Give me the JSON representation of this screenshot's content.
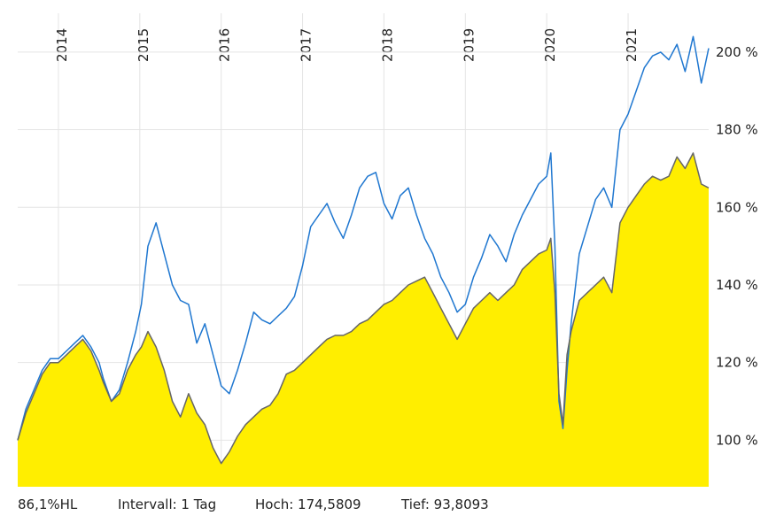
{
  "chart_data": {
    "type": "area",
    "x_ticks": [
      "2014",
      "2015",
      "2016",
      "2017",
      "2018",
      "2019",
      "2020",
      "2021"
    ],
    "y_ticks": [
      {
        "value": 100,
        "label": "100 %"
      },
      {
        "value": 120,
        "label": "120 %"
      },
      {
        "value": 140,
        "label": "140 %"
      },
      {
        "value": 160,
        "label": "160 %"
      },
      {
        "value": 180,
        "label": "180 %"
      },
      {
        "value": 200,
        "label": "200 %"
      }
    ],
    "xlim": [
      2013.5,
      2021.99
    ],
    "ylim": [
      88,
      210
    ],
    "grid": true,
    "series": [
      {
        "color": "#1f77d0",
        "x": [
          2013.5,
          2013.6,
          2013.7,
          2013.8,
          2013.9,
          2014.0,
          2014.1,
          2014.2,
          2014.3,
          2014.4,
          2014.5,
          2014.55,
          2014.65,
          2014.75,
          2014.85,
          2014.95,
          2015.02,
          2015.1,
          2015.2,
          2015.3,
          2015.4,
          2015.5,
          2015.6,
          2015.7,
          2015.8,
          2015.9,
          2016.0,
          2016.1,
          2016.2,
          2016.3,
          2016.4,
          2016.5,
          2016.6,
          2016.7,
          2016.8,
          2016.9,
          2017.0,
          2017.1,
          2017.2,
          2017.3,
          2017.4,
          2017.5,
          2017.6,
          2017.7,
          2017.8,
          2017.9,
          2018.0,
          2018.1,
          2018.2,
          2018.3,
          2018.4,
          2018.5,
          2018.6,
          2018.7,
          2018.8,
          2018.9,
          2019.0,
          2019.1,
          2019.2,
          2019.3,
          2019.4,
          2019.5,
          2019.6,
          2019.7,
          2019.8,
          2019.9,
          2020.0,
          2020.05,
          2020.1,
          2020.15,
          2020.2,
          2020.25,
          2020.3,
          2020.4,
          2020.5,
          2020.6,
          2020.7,
          2020.8,
          2020.9,
          2021.0,
          2021.1,
          2021.2,
          2021.3,
          2021.4,
          2021.5,
          2021.6,
          2021.7,
          2021.8,
          2021.9,
          2021.99
        ],
        "values": [
          100,
          108,
          113,
          118,
          121,
          121,
          123,
          125,
          127,
          124,
          120,
          116,
          110,
          113,
          120,
          128,
          135,
          150,
          156,
          148,
          140,
          136,
          135,
          125,
          130,
          122,
          114,
          112,
          118,
          125,
          133,
          131,
          130,
          132,
          134,
          137,
          145,
          155,
          158,
          161,
          156,
          152,
          158,
          165,
          168,
          169,
          161,
          157,
          163,
          165,
          158,
          152,
          148,
          142,
          138,
          133,
          135,
          142,
          147,
          153,
          150,
          146,
          153,
          158,
          162,
          166,
          168,
          174,
          150,
          110,
          103,
          118,
          130,
          148,
          155,
          162,
          165,
          160,
          180,
          184,
          190,
          196,
          199,
          200,
          198,
          202,
          195,
          204,
          192,
          201
        ]
      },
      {
        "color": "#666666",
        "fill": "#ffee00",
        "x": [
          2013.5,
          2013.6,
          2013.7,
          2013.8,
          2013.9,
          2014.0,
          2014.1,
          2014.2,
          2014.3,
          2014.4,
          2014.5,
          2014.55,
          2014.65,
          2014.75,
          2014.85,
          2014.95,
          2015.02,
          2015.1,
          2015.2,
          2015.3,
          2015.4,
          2015.5,
          2015.6,
          2015.7,
          2015.8,
          2015.9,
          2016.0,
          2016.1,
          2016.2,
          2016.3,
          2016.4,
          2016.5,
          2016.6,
          2016.7,
          2016.8,
          2016.9,
          2017.0,
          2017.1,
          2017.2,
          2017.3,
          2017.4,
          2017.5,
          2017.6,
          2017.7,
          2017.8,
          2017.9,
          2018.0,
          2018.1,
          2018.2,
          2018.3,
          2018.4,
          2018.5,
          2018.6,
          2018.7,
          2018.8,
          2018.9,
          2019.0,
          2019.1,
          2019.2,
          2019.3,
          2019.4,
          2019.5,
          2019.6,
          2019.7,
          2019.8,
          2019.9,
          2020.0,
          2020.05,
          2020.1,
          2020.15,
          2020.2,
          2020.25,
          2020.3,
          2020.4,
          2020.5,
          2020.6,
          2020.7,
          2020.8,
          2020.9,
          2021.0,
          2021.1,
          2021.2,
          2021.3,
          2021.4,
          2021.5,
          2021.6,
          2021.7,
          2021.8,
          2021.9,
          2021.99
        ],
        "values": [
          100,
          107,
          112,
          117,
          120,
          120,
          122,
          124,
          126,
          123,
          118,
          115,
          110,
          112,
          118,
          122,
          124,
          128,
          124,
          118,
          110,
          106,
          112,
          107,
          104,
          98,
          94,
          97,
          101,
          104,
          106,
          108,
          109,
          112,
          117,
          118,
          120,
          122,
          124,
          126,
          127,
          127,
          128,
          130,
          131,
          133,
          135,
          136,
          138,
          140,
          141,
          142,
          138,
          134,
          130,
          126,
          130,
          134,
          136,
          138,
          136,
          138,
          140,
          144,
          146,
          148,
          149,
          152,
          138,
          112,
          104,
          122,
          128,
          136,
          138,
          140,
          142,
          138,
          156,
          160,
          163,
          166,
          168,
          167,
          168,
          173,
          170,
          174,
          166,
          165
        ]
      }
    ],
    "footer": {
      "item1": "86,1%HL",
      "item2": "Intervall: 1 Tag",
      "item3": "Hoch: 174,5809",
      "item4": "Tief: 93,8093"
    }
  }
}
